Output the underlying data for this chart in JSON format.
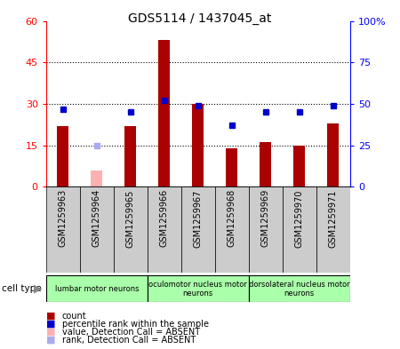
{
  "title": "GDS5114 / 1437045_at",
  "samples": [
    "GSM1259963",
    "GSM1259964",
    "GSM1259965",
    "GSM1259966",
    "GSM1259967",
    "GSM1259968",
    "GSM1259969",
    "GSM1259970",
    "GSM1259971"
  ],
  "counts": [
    22,
    null,
    22,
    53,
    30,
    14,
    16,
    15,
    23
  ],
  "counts_absent": [
    null,
    6,
    null,
    null,
    null,
    null,
    null,
    null,
    null
  ],
  "percentile_ranks": [
    47,
    null,
    45,
    52,
    49,
    37,
    45,
    45,
    49
  ],
  "percentile_ranks_absent": [
    null,
    25,
    null,
    null,
    null,
    null,
    null,
    null,
    null
  ],
  "ylim_left": [
    0,
    60
  ],
  "ylim_right": [
    0,
    100
  ],
  "yticks_left": [
    0,
    15,
    30,
    45,
    60
  ],
  "yticks_right": [
    0,
    25,
    50,
    75,
    100
  ],
  "ytick_labels_left": [
    "0",
    "15",
    "30",
    "45",
    "60"
  ],
  "ytick_labels_right": [
    "0",
    "25",
    "50",
    "75",
    "100%"
  ],
  "bar_color": "#AA0000",
  "bar_absent_color": "#FFB0B0",
  "dot_color": "#0000CC",
  "dot_absent_color": "#AAAAEE",
  "cell_groups": [
    {
      "label": "lumbar motor neurons",
      "start": 0,
      "end": 3
    },
    {
      "label": "oculomotor nucleus motor\nneurons",
      "start": 3,
      "end": 6
    },
    {
      "label": "dorsolateral nucleus motor\nneurons",
      "start": 6,
      "end": 9
    }
  ],
  "legend_items": [
    {
      "label": "count",
      "color": "#AA0000"
    },
    {
      "label": "percentile rank within the sample",
      "color": "#0000CC"
    },
    {
      "label": "value, Detection Call = ABSENT",
      "color": "#FFB0B0"
    },
    {
      "label": "rank, Detection Call = ABSENT",
      "color": "#AAAAEE"
    }
  ],
  "bar_width": 0.35,
  "cell_group_color": "#AAFFAA",
  "xtick_bg_color": "#CCCCCC",
  "plot_bg_color": "#FFFFFF",
  "grid_color": "#000000"
}
